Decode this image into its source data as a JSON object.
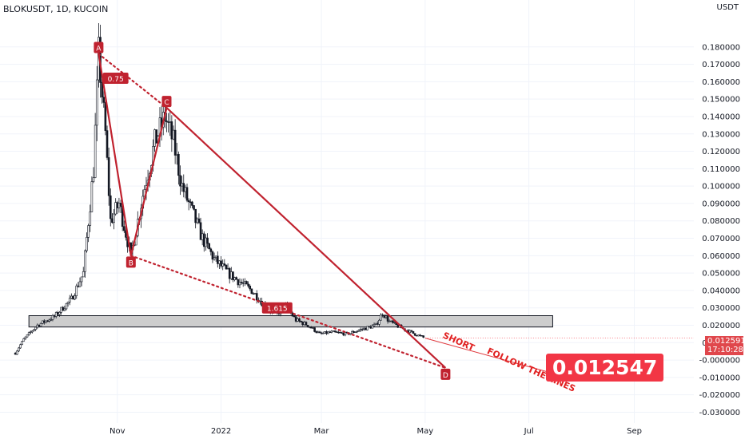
{
  "header": {
    "symbol": "BLOKUSDT, 1D, KUCOIN"
  },
  "axis": {
    "unit": "USDT"
  },
  "price_badge": {
    "price": "0.012591",
    "countdown": "17:10:28"
  },
  "big_price": "0.012547",
  "colors": {
    "pattern": "#c0222f",
    "candle": "#131722",
    "grid": "#f0f3fa",
    "zone_fill": "#c4c4c4",
    "badge": "#f23645"
  },
  "chart_data": {
    "type": "candlestick",
    "title": "BLOKUSDT, 1D, KUCOIN",
    "y_ticks": [
      "0.180000",
      "0.170000",
      "0.160000",
      "0.150000",
      "0.140000",
      "0.130000",
      "0.120000",
      "0.110000",
      "0.100000",
      "0.090000",
      "0.080000",
      "0.070000",
      "0.060000",
      "0.050000",
      "0.040000",
      "0.030000",
      "0.020000",
      "0.010000",
      "-0.000000",
      "-0.010000",
      "-0.020000",
      "-0.030000"
    ],
    "y_tick_values": [
      0.18,
      0.17,
      0.16,
      0.15,
      0.14,
      0.13,
      0.12,
      0.11,
      0.1,
      0.09,
      0.08,
      0.07,
      0.06,
      0.05,
      0.04,
      0.03,
      0.02,
      0.01,
      0.0,
      -0.01,
      -0.02,
      -0.03
    ],
    "x_ticks": [
      "Nov",
      "2022",
      "Mar",
      "May",
      "Jul",
      "Sep"
    ],
    "x_tick_dates": [
      "2021-11-01",
      "2022-01-01",
      "2022-03-01",
      "2022-05-01",
      "2022-07-01",
      "2022-09-01"
    ],
    "ylim": [
      -0.033,
      0.19
    ],
    "xlim": [
      "2021-08-24",
      "2022-10-06"
    ],
    "price_series": [
      {
        "date": "2021-09-02",
        "close": 0.004
      },
      {
        "date": "2021-09-07",
        "close": 0.012
      },
      {
        "date": "2021-09-15",
        "close": 0.02
      },
      {
        "date": "2021-09-25",
        "close": 0.025
      },
      {
        "date": "2021-10-05",
        "close": 0.035
      },
      {
        "date": "2021-10-12",
        "close": 0.05
      },
      {
        "date": "2021-10-18",
        "close": 0.11
      },
      {
        "date": "2021-10-21",
        "close": 0.176
      },
      {
        "date": "2021-10-25",
        "close": 0.13
      },
      {
        "date": "2021-10-28",
        "close": 0.08
      },
      {
        "date": "2021-11-02",
        "close": 0.09
      },
      {
        "date": "2021-11-09",
        "close": 0.06
      },
      {
        "date": "2021-11-16",
        "close": 0.095
      },
      {
        "date": "2021-11-23",
        "close": 0.125
      },
      {
        "date": "2021-11-29",
        "close": 0.14
      },
      {
        "date": "2021-12-04",
        "close": 0.125
      },
      {
        "date": "2021-12-09",
        "close": 0.1
      },
      {
        "date": "2021-12-15",
        "close": 0.085
      },
      {
        "date": "2021-12-21",
        "close": 0.07
      },
      {
        "date": "2021-12-28",
        "close": 0.058
      },
      {
        "date": "2022-01-05",
        "close": 0.05
      },
      {
        "date": "2022-01-12",
        "close": 0.045
      },
      {
        "date": "2022-01-19",
        "close": 0.04
      },
      {
        "date": "2022-01-26",
        "close": 0.032
      },
      {
        "date": "2022-02-02",
        "close": 0.026
      },
      {
        "date": "2022-02-08",
        "close": 0.031
      },
      {
        "date": "2022-02-14",
        "close": 0.023
      },
      {
        "date": "2022-02-21",
        "close": 0.02
      },
      {
        "date": "2022-02-28",
        "close": 0.015
      },
      {
        "date": "2022-03-07",
        "close": 0.016
      },
      {
        "date": "2022-03-16",
        "close": 0.015
      },
      {
        "date": "2022-03-26",
        "close": 0.018
      },
      {
        "date": "2022-04-02",
        "close": 0.02
      },
      {
        "date": "2022-04-06",
        "close": 0.027
      },
      {
        "date": "2022-04-10",
        "close": 0.022
      },
      {
        "date": "2022-04-18",
        "close": 0.018
      },
      {
        "date": "2022-04-26",
        "close": 0.0145
      },
      {
        "date": "2022-05-01",
        "close": 0.0126
      }
    ],
    "zone": {
      "from": "2021-09-10",
      "to": "2022-07-15",
      "low": 0.019,
      "high": 0.0255
    },
    "pattern_points": [
      {
        "label": "A",
        "date": "2021-10-21",
        "price": 0.176
      },
      {
        "label": "B",
        "date": "2021-11-09",
        "price": 0.06
      },
      {
        "label": "C",
        "date": "2021-11-30",
        "price": 0.145
      },
      {
        "label": "D",
        "date": "2022-05-13",
        "price": -0.0045
      }
    ],
    "ratios": [
      {
        "label": "0.75",
        "date": "2021-10-31",
        "price": 0.162
      },
      {
        "label": "1.615",
        "date": "2022-02-03",
        "price": 0.03
      }
    ],
    "annotations": [
      {
        "text": "SHORT",
        "date": "2022-05-11",
        "price": 0.013
      },
      {
        "text": "FOLLOW THE LINES",
        "date": "2022-06-06",
        "price": 0.004
      }
    ],
    "last_price": 0.012591,
    "grid": true
  }
}
